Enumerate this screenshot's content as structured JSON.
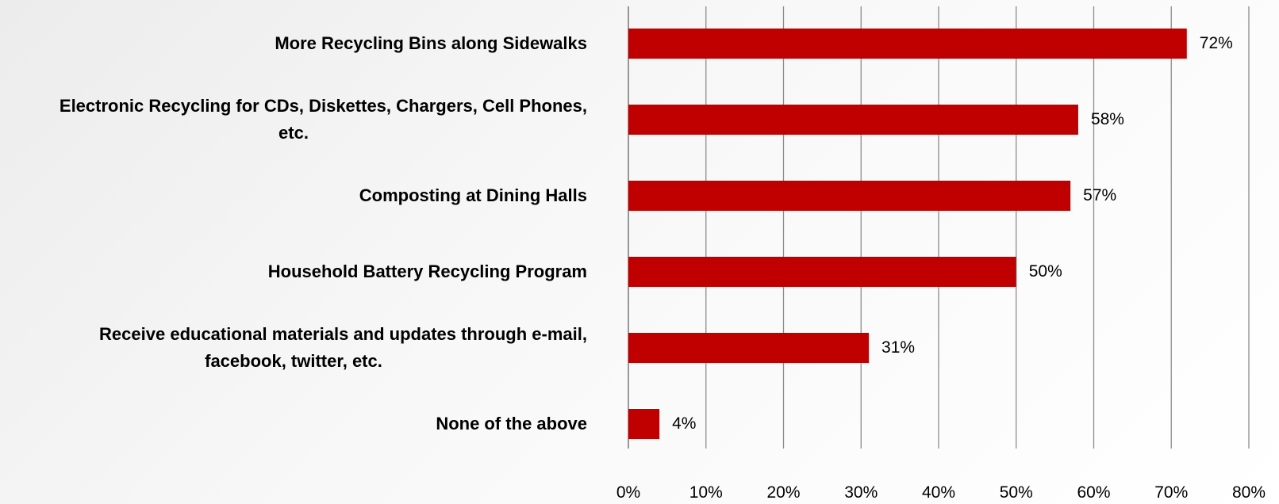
{
  "chart_data": {
    "type": "bar",
    "orientation": "horizontal",
    "categories": [
      "More Recycling Bins along Sidewalks",
      "Electronic Recycling for CDs, Diskettes, Chargers, Cell Phones, etc.",
      "Composting at Dining Halls",
      "Household Battery Recycling Program",
      "Receive educational materials and updates through e-mail, facebook, twitter, etc.",
      "None of the above"
    ],
    "category_lines": [
      [
        "More Recycling Bins along Sidewalks"
      ],
      [
        "Electronic Recycling for CDs, Diskettes, Chargers, Cell Phones,",
        "etc."
      ],
      [
        "Composting at Dining Halls"
      ],
      [
        "Household Battery Recycling Program"
      ],
      [
        "Receive educational materials and updates through e-mail,",
        "facebook, twitter, etc."
      ],
      [
        "None of the above"
      ]
    ],
    "values": [
      72,
      58,
      57,
      50,
      31,
      4
    ],
    "value_labels": [
      "72%",
      "58%",
      "57%",
      "50%",
      "31%",
      "4%"
    ],
    "xlim": [
      0,
      80
    ],
    "xticks": [
      0,
      10,
      20,
      30,
      40,
      50,
      60,
      70,
      80
    ],
    "xtick_labels": [
      "0%",
      "10%",
      "20%",
      "30%",
      "40%",
      "50%",
      "60%",
      "70%",
      "80%"
    ],
    "bar_color": "#c00000",
    "grid": true,
    "legend": "none",
    "title": "",
    "xlabel": "",
    "ylabel": ""
  }
}
